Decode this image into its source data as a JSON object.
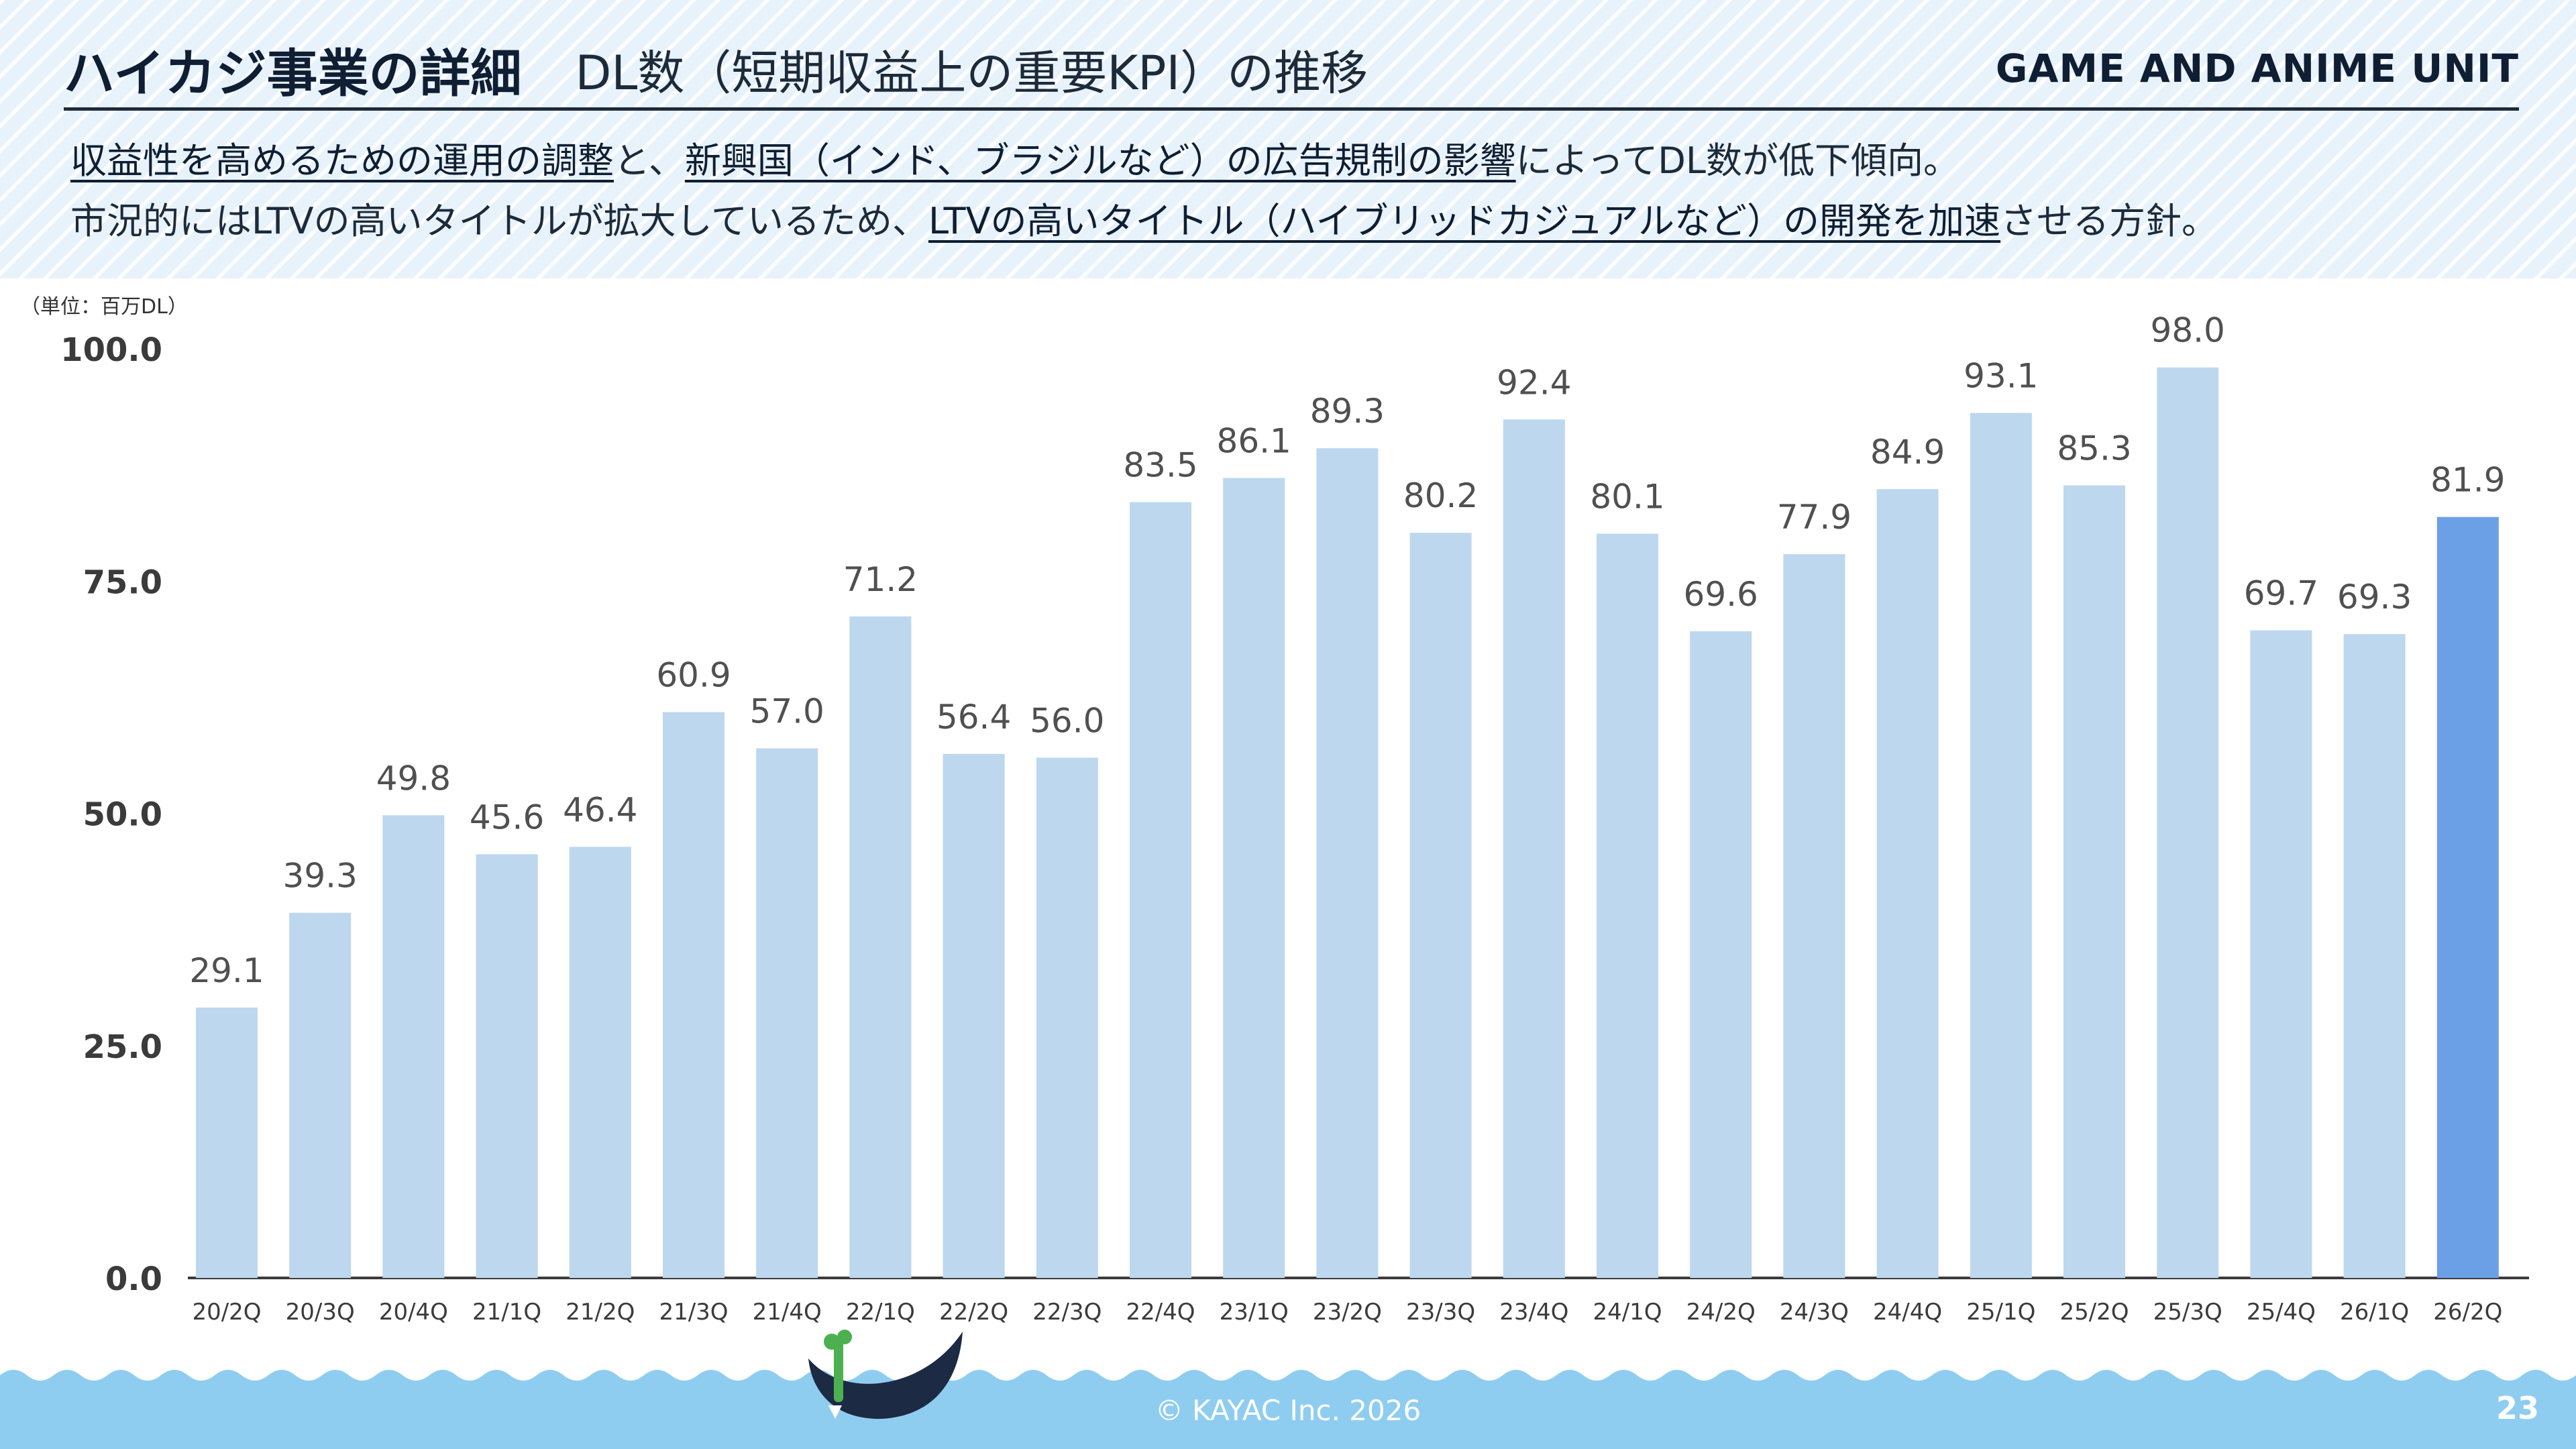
{
  "header": {
    "title": "ハイカジ事業の詳細",
    "subtitle": "DL数（短期収益上の重要KPI）の推移",
    "unit_name": "GAME AND ANIME UNIT"
  },
  "summary": {
    "line1_em1": "収益性を高めるための運用の調整",
    "line1_t1": "と、",
    "line1_em2": "新興国（インド、ブラジルなど）の広告規制の影響",
    "line1_t2": "によってDL数が低下傾向。",
    "line2_t1": "市況的にはLTVの高いタイトルが拡大しているため、",
    "line2_em1": "LTVの高いタイトル（ハイブリッドカジュアルなど）の開発を加速",
    "line2_t2": "させる方針。"
  },
  "chart_note": "（単位：百万DL）",
  "footer": {
    "copyright": "© KAYAC Inc. 2026",
    "page": "23"
  },
  "colors": {
    "bar": "#bdd7ee",
    "bar_highlight": "#6ca0e6",
    "wave": "#8fcdf0",
    "header_bg": "#e7f2fb"
  },
  "chart_data": {
    "type": "bar",
    "categories": [
      "20/2Q",
      "20/3Q",
      "20/4Q",
      "21/1Q",
      "21/2Q",
      "21/3Q",
      "21/4Q",
      "22/1Q",
      "22/2Q",
      "22/3Q",
      "22/4Q",
      "23/1Q",
      "23/2Q",
      "23/3Q",
      "23/4Q",
      "24/1Q",
      "24/2Q",
      "24/3Q",
      "24/4Q",
      "25/1Q",
      "25/2Q",
      "25/3Q",
      "25/4Q",
      "26/1Q",
      "26/2Q"
    ],
    "values": [
      29.1,
      39.3,
      49.8,
      45.6,
      46.4,
      60.9,
      57.0,
      71.2,
      56.4,
      56.0,
      83.5,
      86.1,
      89.3,
      80.2,
      92.4,
      80.1,
      69.6,
      77.9,
      84.9,
      93.1,
      85.3,
      98.0,
      69.7,
      69.3,
      81.9
    ],
    "value_labels": [
      "29.1",
      "39.3",
      "49.8",
      "45.6",
      "46.4",
      "60.9",
      "57.0",
      "71.2",
      "56.4",
      "56.0",
      "83.5",
      "86.1",
      "89.3",
      "80.2",
      "92.4",
      "80.1",
      "69.6",
      "77.9",
      "84.9",
      "93.1",
      "85.3",
      "98.0",
      "69.7",
      "69.3",
      "81.9"
    ],
    "highlight_index": 24,
    "yticks": [
      "0.0",
      "25.0",
      "50.0",
      "75.0",
      "100.0"
    ],
    "ylim": [
      0,
      100
    ],
    "grid": false,
    "legend": "none"
  }
}
